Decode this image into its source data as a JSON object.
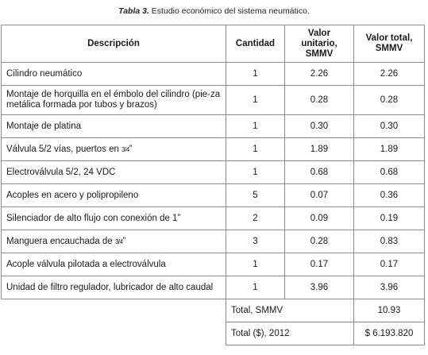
{
  "caption": {
    "label": "Tabla 3.",
    "text": " Estudio económico del sistema neumático."
  },
  "table": {
    "headers": {
      "description": "Descripción",
      "quantity": "Cantidad",
      "unit_value": "Valor unitario, SMMV",
      "total_value": "Valor total, SMMV"
    },
    "rows": [
      {
        "description": "Cilindro neumático",
        "quantity": "1",
        "unit_value": "2.26",
        "total_value": "2.26"
      },
      {
        "description": "Montaje de horquilla en el émbolo del cilindro (pie-za metálica formada por tubos y brazos)",
        "quantity": "1",
        "unit_value": "0.28",
        "total_value": "0.28"
      },
      {
        "description": "Montaje de platina",
        "quantity": "1",
        "unit_value": "0.30",
        "total_value": "0.30"
      },
      {
        "description": "Válvula 5/2 vías, puertos en ",
        "fraction": "3/4",
        "suffix": "”",
        "quantity": "1",
        "unit_value": "1.89",
        "total_value": "1.89"
      },
      {
        "description": "Electroválvula 5/2, 24 VDC",
        "quantity": "1",
        "unit_value": "0.68",
        "total_value": "0.68"
      },
      {
        "description": "Acoples en acero y polipropileno",
        "quantity": "5",
        "unit_value": "0.07",
        "total_value": "0.36"
      },
      {
        "description": "Silenciador de alto flujo con conexión de 1”",
        "quantity": "2",
        "unit_value": "0.09",
        "total_value": "0.19"
      },
      {
        "description": "Manguera encauchada de ",
        "fraction": "3/4",
        "suffix": "”",
        "quantity": "3",
        "unit_value": "0.28",
        "total_value": "0.83"
      },
      {
        "description": "Acople válvula pilotada a electroválvula",
        "quantity": "1",
        "unit_value": "0.17",
        "total_value": "0.17"
      },
      {
        "description": "Unidad de filtro regulador, lubricador de alto caudal",
        "quantity": "1",
        "unit_value": "3.96",
        "total_value": "3.96"
      }
    ],
    "totals": [
      {
        "label": "Total, SMMV",
        "value": "10.93"
      },
      {
        "label": "Total ($), 2012",
        "value": "$ 6.193.820"
      }
    ]
  }
}
